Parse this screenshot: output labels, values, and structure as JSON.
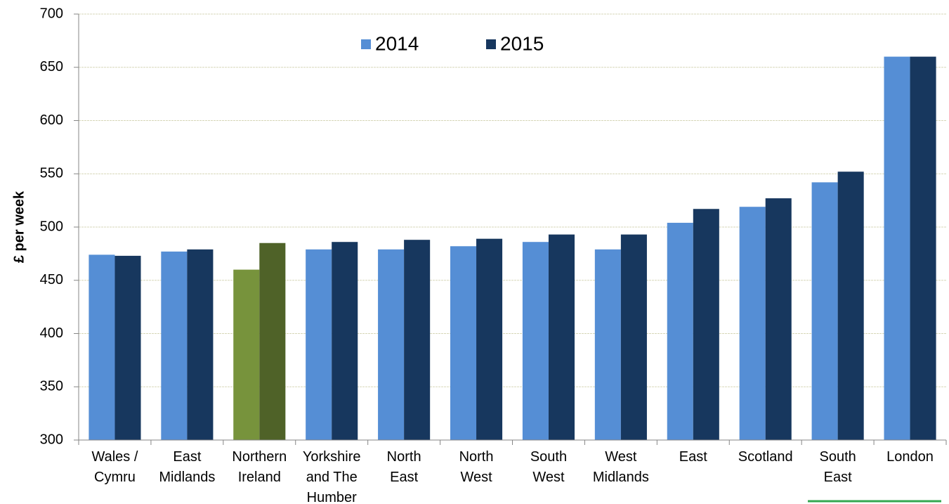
{
  "chart_data": {
    "type": "bar",
    "y_label": "£ per week",
    "categories": [
      "Wales /\nCymru",
      "East\nMidlands",
      "Northern\nIreland",
      "Yorkshire\nand The\nHumber",
      "North\nEast",
      "North\nWest",
      "South\nWest",
      "West\nMidlands",
      "East",
      "Scotland",
      "South\nEast",
      "London"
    ],
    "series": [
      {
        "name": "2014",
        "color": "#558ed5",
        "colors": [
          "#558ed5",
          "#558ed5",
          "#77933c",
          "#558ed5",
          "#558ed5",
          "#558ed5",
          "#558ed5",
          "#558ed5",
          "#558ed5",
          "#558ed5",
          "#558ed5",
          "#558ed5"
        ],
        "values": [
          474,
          477,
          460,
          479,
          479,
          482,
          486,
          479,
          504,
          519,
          542,
          660
        ]
      },
      {
        "name": "2015",
        "color": "#17375e",
        "colors": [
          "#17375e",
          "#17375e",
          "#4f6228",
          "#17375e",
          "#17375e",
          "#17375e",
          "#17375e",
          "#17375e",
          "#17375e",
          "#17375e",
          "#17375e",
          "#17375e"
        ],
        "values": [
          473,
          479,
          485,
          486,
          488,
          489,
          493,
          493,
          517,
          527,
          552,
          660
        ]
      }
    ],
    "ylim": [
      300,
      700
    ],
    "yticks": [
      300,
      350,
      400,
      450,
      500,
      550,
      600,
      650,
      700
    ],
    "grid": true,
    "legend": "top"
  }
}
